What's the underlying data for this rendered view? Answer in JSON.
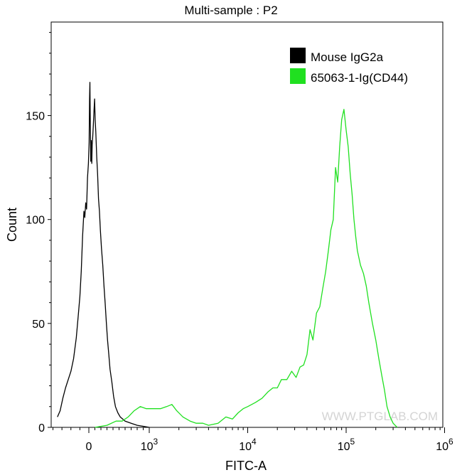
{
  "chart_data": {
    "type": "line",
    "title": "Multi-sample : P2",
    "xlabel": "FITC-A",
    "ylabel": "Count",
    "x_scale": "biexponential (linear near 0, log above 10^3)",
    "ylim": [
      0,
      195
    ],
    "y_ticks": [
      0,
      50,
      100,
      150
    ],
    "x_ticks": [
      {
        "value": 0,
        "base": "0",
        "exp": ""
      },
      {
        "value": 1000,
        "base": "10",
        "exp": "3"
      },
      {
        "value": 10000,
        "base": "10",
        "exp": "4"
      },
      {
        "value": 100000,
        "base": "10",
        "exp": "5"
      },
      {
        "value": 1000000,
        "base": "10",
        "exp": "6"
      }
    ],
    "grid": false,
    "legend_position": "top-right",
    "series": [
      {
        "name": "Mouse IgG2a",
        "color": "#000000",
        "points": [
          [
            -350,
            5
          ],
          [
            -320,
            8
          ],
          [
            -290,
            14
          ],
          [
            -260,
            19
          ],
          [
            -230,
            23
          ],
          [
            -200,
            27
          ],
          [
            -170,
            33
          ],
          [
            -140,
            43
          ],
          [
            -120,
            53
          ],
          [
            -100,
            63
          ],
          [
            -85,
            75
          ],
          [
            -70,
            92
          ],
          [
            -55,
            104
          ],
          [
            -45,
            101
          ],
          [
            -35,
            108
          ],
          [
            -25,
            105
          ],
          [
            -15,
            120
          ],
          [
            -5,
            127
          ],
          [
            5,
            137
          ],
          [
            12,
            158
          ],
          [
            18,
            166
          ],
          [
            25,
            145
          ],
          [
            32,
            128
          ],
          [
            40,
            138
          ],
          [
            48,
            127
          ],
          [
            55,
            136
          ],
          [
            65,
            140
          ],
          [
            75,
            146
          ],
          [
            85,
            152
          ],
          [
            95,
            158
          ],
          [
            105,
            148
          ],
          [
            115,
            142
          ],
          [
            130,
            130
          ],
          [
            145,
            122
          ],
          [
            160,
            110
          ],
          [
            175,
            104
          ],
          [
            190,
            95
          ],
          [
            210,
            86
          ],
          [
            230,
            78
          ],
          [
            250,
            68
          ],
          [
            270,
            60
          ],
          [
            290,
            50
          ],
          [
            310,
            42
          ],
          [
            330,
            35
          ],
          [
            350,
            28
          ],
          [
            380,
            22
          ],
          [
            410,
            15
          ],
          [
            440,
            10
          ],
          [
            480,
            7
          ],
          [
            520,
            5
          ],
          [
            600,
            3
          ],
          [
            700,
            2
          ],
          [
            800,
            1
          ],
          [
            900,
            0.5
          ],
          [
            1000,
            0
          ]
        ]
      },
      {
        "name": "65063-1-Ig(CD44)",
        "color": "#20e020",
        "points": [
          [
            100,
            0
          ],
          [
            300,
            1
          ],
          [
            450,
            3
          ],
          [
            550,
            3
          ],
          [
            650,
            5
          ],
          [
            750,
            8
          ],
          [
            850,
            10
          ],
          [
            950,
            9
          ],
          [
            1100,
            9
          ],
          [
            1300,
            9
          ],
          [
            1500,
            10
          ],
          [
            1700,
            11
          ],
          [
            1900,
            8
          ],
          [
            2200,
            5
          ],
          [
            2600,
            3
          ],
          [
            3000,
            2
          ],
          [
            3500,
            2
          ],
          [
            4000,
            1
          ],
          [
            5000,
            2
          ],
          [
            6000,
            5
          ],
          [
            7000,
            4
          ],
          [
            8000,
            7
          ],
          [
            9000,
            9
          ],
          [
            10000,
            10
          ],
          [
            12000,
            12
          ],
          [
            14000,
            14
          ],
          [
            16000,
            17
          ],
          [
            18000,
            19
          ],
          [
            20000,
            19
          ],
          [
            22000,
            23
          ],
          [
            25000,
            23
          ],
          [
            28000,
            27
          ],
          [
            31000,
            24
          ],
          [
            34000,
            29
          ],
          [
            37000,
            30
          ],
          [
            40000,
            35
          ],
          [
            43000,
            47
          ],
          [
            46000,
            42
          ],
          [
            50000,
            55
          ],
          [
            54000,
            58
          ],
          [
            58000,
            67
          ],
          [
            62000,
            75
          ],
          [
            66000,
            85
          ],
          [
            70000,
            95
          ],
          [
            74000,
            100
          ],
          [
            78000,
            125
          ],
          [
            82000,
            118
          ],
          [
            86000,
            135
          ],
          [
            90000,
            148
          ],
          [
            95000,
            153
          ],
          [
            100000,
            143
          ],
          [
            105000,
            135
          ],
          [
            110000,
            122
          ],
          [
            115000,
            112
          ],
          [
            120000,
            100
          ],
          [
            125000,
            92
          ],
          [
            130000,
            85
          ],
          [
            140000,
            78
          ],
          [
            150000,
            74
          ],
          [
            160000,
            68
          ],
          [
            170000,
            60
          ],
          [
            185000,
            50
          ],
          [
            200000,
            42
          ],
          [
            215000,
            33
          ],
          [
            230000,
            25
          ],
          [
            245000,
            18
          ],
          [
            260000,
            10
          ],
          [
            280000,
            5
          ],
          [
            300000,
            2
          ],
          [
            330000,
            0
          ]
        ]
      }
    ]
  },
  "watermark": "WWW.PTGLAB.COM"
}
